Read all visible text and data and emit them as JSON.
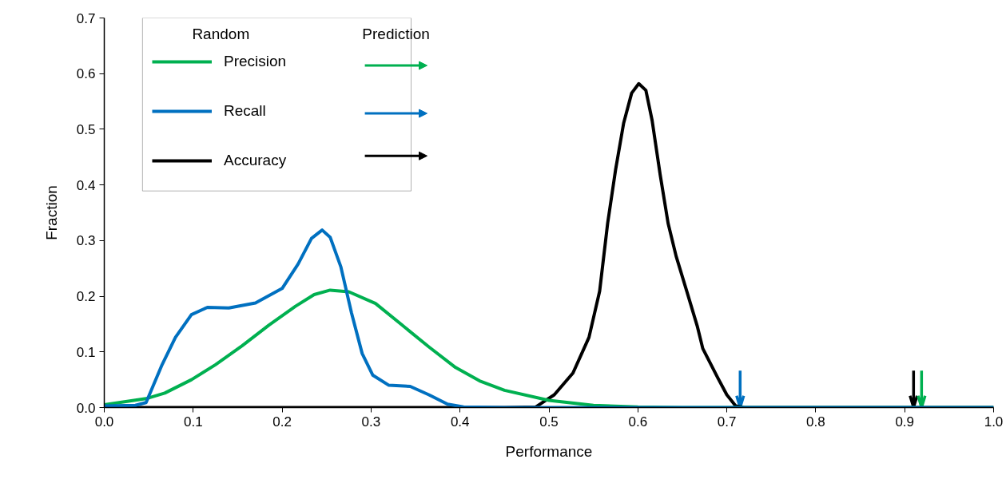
{
  "chart_data": {
    "type": "line",
    "xlabel": "Performance",
    "ylabel": "Fraction",
    "xlim": [
      0,
      1
    ],
    "ylim": [
      0,
      0.7
    ],
    "xticks": [
      {
        "value": 0,
        "label": "0.0"
      },
      0.1,
      0.2,
      0.3,
      0.4,
      0.5,
      0.6,
      0.7,
      0.8,
      0.9,
      {
        "value": 1,
        "label": "1.0"
      }
    ],
    "yticks": [
      {
        "value": 0,
        "label": "0.0"
      },
      0.1,
      0.2,
      0.3,
      0.4,
      0.5,
      0.6,
      0.7
    ],
    "grid": false,
    "legend": "top left",
    "marker": "none",
    "line_style": "solid",
    "annotations": [
      "Random",
      "Prediction"
    ],
    "series": [
      {
        "name": "Precision",
        "color": "#00b050",
        "x": [
          0,
          0.047,
          0.068,
          0.098,
          0.125,
          0.155,
          0.185,
          0.215,
          0.236,
          0.254,
          0.275,
          0.305,
          0.335,
          0.365,
          0.395,
          0.422,
          0.45,
          0.5,
          0.55,
          0.6,
          0.65,
          1.0
        ],
        "values": [
          0.005,
          0.016,
          0.026,
          0.05,
          0.077,
          0.111,
          0.148,
          0.182,
          0.203,
          0.211,
          0.208,
          0.187,
          0.148,
          0.109,
          0.072,
          0.048,
          0.031,
          0.013,
          0.004,
          0.001,
          0,
          0
        ]
      },
      {
        "name": "Recall",
        "color": "#0070c0",
        "x": [
          0,
          0.035,
          0.047,
          0.065,
          0.08,
          0.098,
          0.116,
          0.14,
          0.17,
          0.2,
          0.218,
          0.233,
          0.245,
          0.254,
          0.266,
          0.278,
          0.29,
          0.302,
          0.32,
          0.344,
          0.365,
          0.386,
          0.404,
          0.45,
          1.0
        ],
        "values": [
          0.003,
          0.004,
          0.009,
          0.077,
          0.126,
          0.167,
          0.18,
          0.179,
          0.188,
          0.214,
          0.258,
          0.304,
          0.319,
          0.306,
          0.253,
          0.17,
          0.097,
          0.058,
          0.04,
          0.038,
          0.023,
          0.006,
          0.001,
          0,
          0
        ]
      },
      {
        "name": "Accuracy",
        "color": "#000000",
        "x": [
          0,
          0.45,
          0.485,
          0.506,
          0.527,
          0.545,
          0.557,
          0.566,
          0.575,
          0.584,
          0.593,
          0.601,
          0.609,
          0.616,
          0.625,
          0.634,
          0.643,
          0.655,
          0.667,
          0.673,
          0.69,
          0.7,
          0.71,
          0.72,
          1.0
        ],
        "values": [
          0,
          0,
          0.001,
          0.023,
          0.062,
          0.126,
          0.209,
          0.331,
          0.428,
          0.511,
          0.565,
          0.582,
          0.57,
          0.516,
          0.419,
          0.331,
          0.272,
          0.209,
          0.145,
          0.106,
          0.053,
          0.023,
          0.003,
          0,
          0
        ]
      }
    ],
    "ref_lines": [
      {
        "axis": "x",
        "value": 0.715,
        "label": null,
        "color": "#0070c0"
      },
      {
        "axis": "x",
        "value": 0.91,
        "label": null,
        "color": "#000000"
      },
      {
        "axis": "x",
        "value": 0.919,
        "label": null,
        "color": "#00b050"
      }
    ]
  }
}
